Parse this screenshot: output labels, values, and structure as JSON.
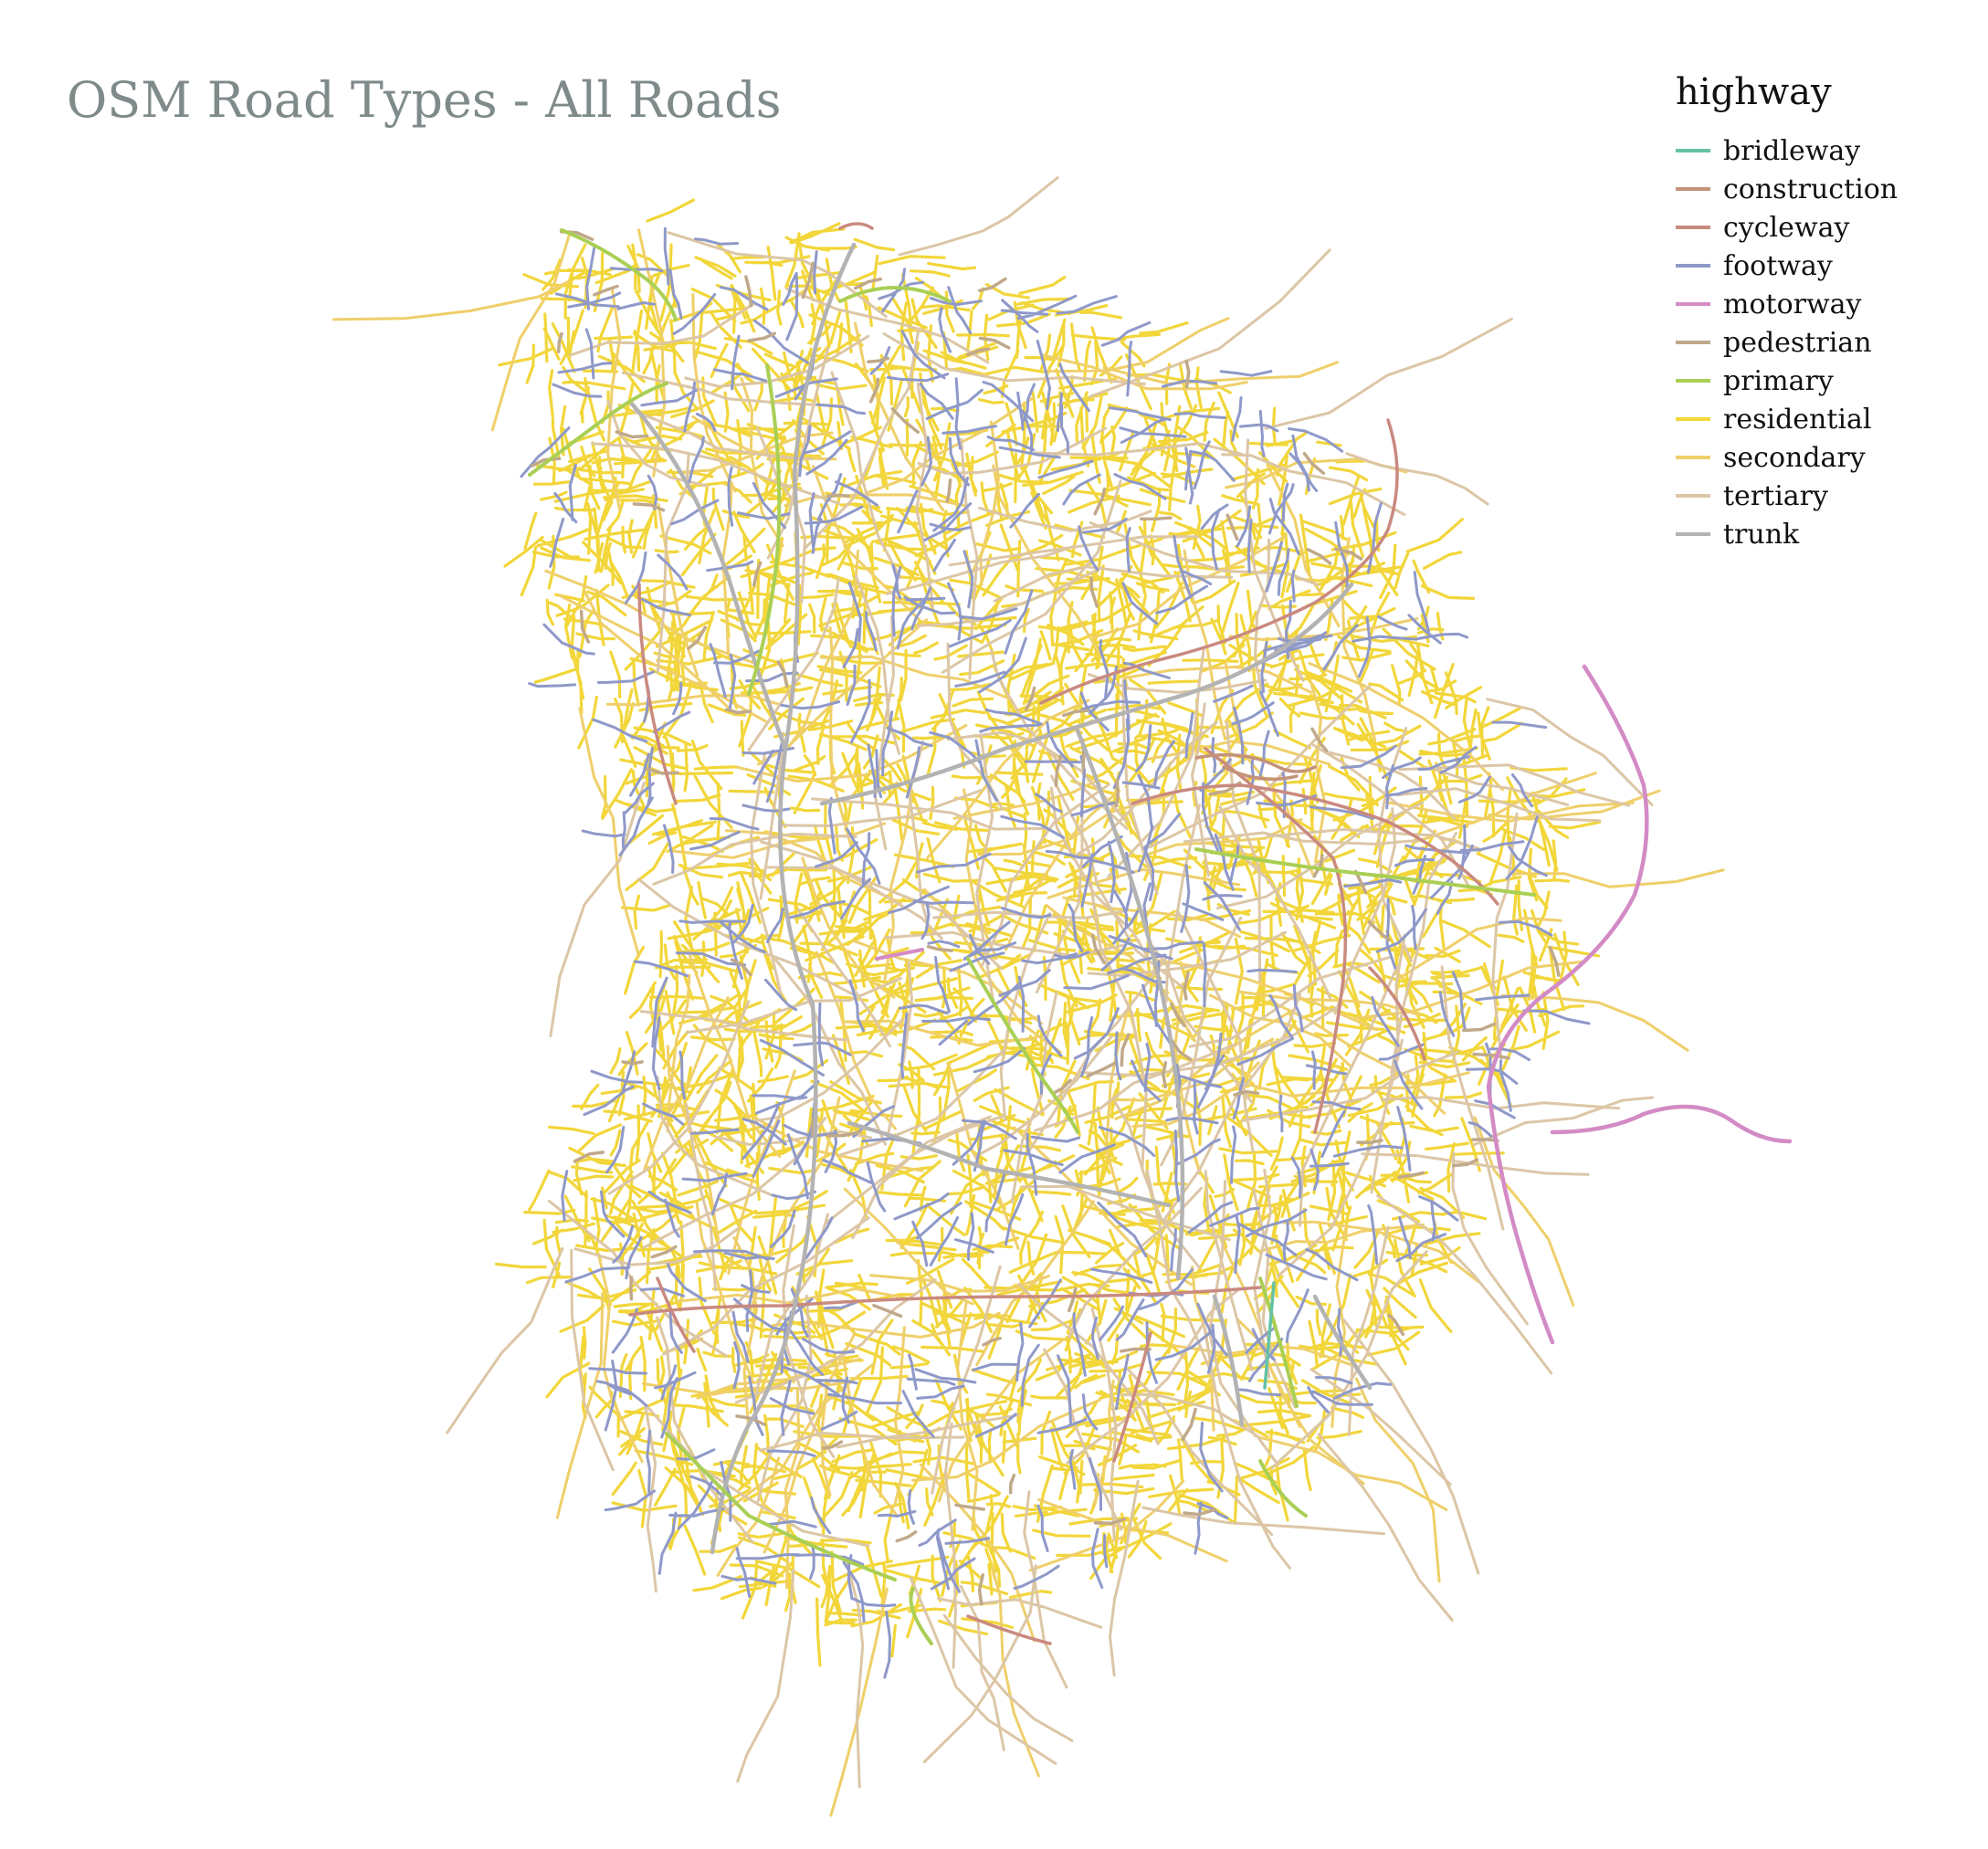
{
  "title": "OSM Road Types - All Roads",
  "legend": {
    "title": "highway",
    "items": [
      {
        "label": "bridleway",
        "color": "#66c2a5"
      },
      {
        "label": "construction",
        "color": "#c4937a"
      },
      {
        "label": "cycleway",
        "color": "#c98a80"
      },
      {
        "label": "footway",
        "color": "#8f99c9"
      },
      {
        "label": "motorway",
        "color": "#d38bc5"
      },
      {
        "label": "pedestrian",
        "color": "#c0a98b"
      },
      {
        "label": "primary",
        "color": "#a9cf55"
      },
      {
        "label": "residential",
        "color": "#f2d63a"
      },
      {
        "label": "secondary",
        "color": "#efcf6a"
      },
      {
        "label": "tertiary",
        "color": "#dcc6a6"
      },
      {
        "label": "trunk",
        "color": "#b3b3b3"
      }
    ]
  }
}
